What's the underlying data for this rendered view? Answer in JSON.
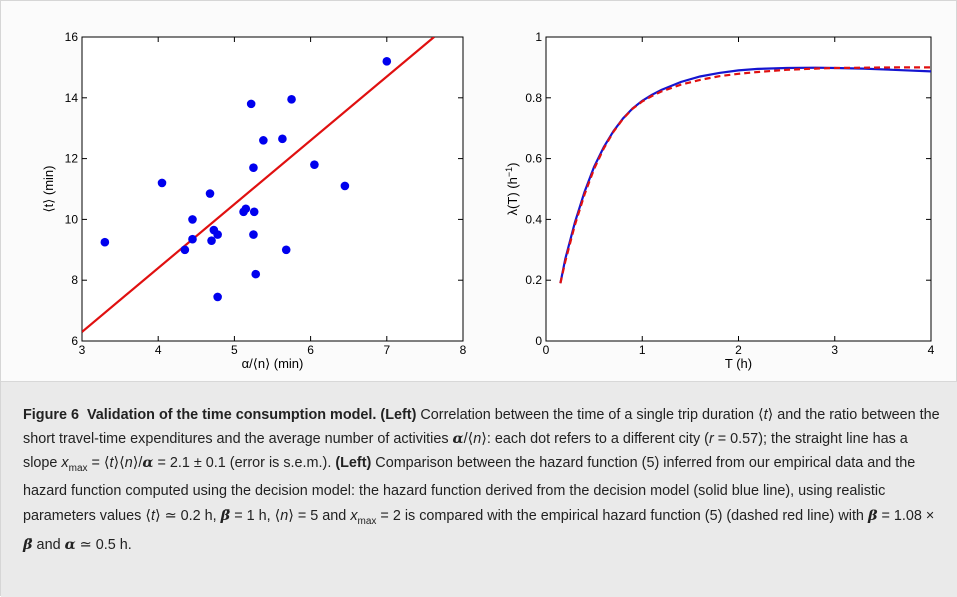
{
  "chart_data": [
    {
      "type": "scatter",
      "xlabel": "α/⟨n⟩ (min)",
      "ylabel": "⟨t⟩ (min)",
      "xlim": [
        3,
        8
      ],
      "ylim": [
        6,
        16
      ],
      "xticks": [
        "3",
        "4",
        "5",
        "6",
        "7",
        "8"
      ],
      "yticks": [
        "6",
        "8",
        "10",
        "12",
        "14",
        "16"
      ],
      "grid": false,
      "points": [
        [
          3.3,
          9.25
        ],
        [
          4.05,
          11.2
        ],
        [
          4.35,
          9.0
        ],
        [
          4.45,
          9.35
        ],
        [
          4.45,
          10.0
        ],
        [
          4.68,
          10.85
        ],
        [
          4.7,
          9.3
        ],
        [
          4.73,
          9.65
        ],
        [
          4.78,
          9.5
        ],
        [
          4.78,
          7.45
        ],
        [
          5.12,
          10.25
        ],
        [
          5.15,
          10.35
        ],
        [
          5.22,
          13.8
        ],
        [
          5.25,
          11.7
        ],
        [
          5.25,
          9.5
        ],
        [
          5.26,
          10.25
        ],
        [
          5.28,
          8.2
        ],
        [
          5.38,
          12.6
        ],
        [
          5.63,
          12.65
        ],
        [
          5.68,
          9.0
        ],
        [
          5.75,
          13.95
        ],
        [
          6.05,
          11.8
        ],
        [
          6.45,
          11.1
        ],
        [
          7.0,
          15.2
        ]
      ],
      "fit_line": {
        "slope": 2.1,
        "x": [
          3,
          7.62
        ],
        "y": [
          6.3,
          16.0
        ]
      },
      "point_color": "#0000ee",
      "line_color": "#e01010"
    },
    {
      "type": "line",
      "xlabel": "T (h)",
      "ylabel": "λ(T) (h",
      "ylabel_sup": "−1",
      "ylabel_close": ")",
      "xlim": [
        0,
        4
      ],
      "ylim": [
        0,
        1
      ],
      "xticks": [
        "0",
        "1",
        "2",
        "3",
        "4"
      ],
      "yticks": [
        "0",
        "0.2",
        "0.4",
        "0.6",
        "0.8",
        "1"
      ],
      "grid": false,
      "series": [
        {
          "style": "solid",
          "color": "#1515d0",
          "x": [
            0.15,
            0.2,
            0.3,
            0.4,
            0.5,
            0.6,
            0.7,
            0.8,
            0.9,
            1.0,
            1.1,
            1.2,
            1.4,
            1.6,
            1.8,
            2.0,
            2.2,
            2.5,
            2.8,
            3.0,
            3.3,
            3.6,
            4.0
          ],
          "y": [
            0.19,
            0.27,
            0.39,
            0.49,
            0.573,
            0.638,
            0.69,
            0.732,
            0.765,
            0.79,
            0.81,
            0.826,
            0.852,
            0.87,
            0.882,
            0.89,
            0.895,
            0.898,
            0.899,
            0.898,
            0.896,
            0.892,
            0.887
          ]
        },
        {
          "style": "dashed",
          "color": "#e01010",
          "x": [
            0.15,
            0.2,
            0.3,
            0.4,
            0.5,
            0.6,
            0.7,
            0.8,
            0.9,
            1.0,
            1.1,
            1.2,
            1.4,
            1.6,
            1.8,
            2.0,
            2.2,
            2.5,
            2.8,
            3.0,
            3.3,
            3.6,
            4.0
          ],
          "y": [
            0.19,
            0.262,
            0.382,
            0.482,
            0.566,
            0.634,
            0.688,
            0.731,
            0.764,
            0.788,
            0.806,
            0.821,
            0.843,
            0.859,
            0.871,
            0.879,
            0.885,
            0.892,
            0.896,
            0.898,
            0.899,
            0.9,
            0.9
          ]
        }
      ]
    }
  ],
  "caption": {
    "figure_label": "Figure 6",
    "figure_title": "Validation of the time consumption model.",
    "left_tag": "(Left)",
    "p1": " Correlation between the time of a single trip duration ⟨",
    "t1": "t",
    "p2": "⟩ and the ratio between the short travel-time expenditures and the average number of activities ",
    "alpha1": "α",
    "p3": "/⟨",
    "n1": "n",
    "p4": "⟩: each dot refers to a different city (",
    "r": "r",
    "p5": " = 0.57); the straight line has a slope ",
    "x1": "x",
    "max1": "max",
    "p6": " = ⟨",
    "t2": "t",
    "p7": "⟩⟨",
    "n2": "n",
    "p8": "⟩/",
    "alpha2": "α",
    "p9": " = 2.1 ± 0.1 (error is s.e.m.). ",
    "left_tag2": "(Left)",
    "p10": " Comparison between the hazard function (5) inferred from our empirical data and the hazard function computed using the decision model: the hazard function derived from the decision model (solid blue line), using realistic parameters values ⟨",
    "t3": "t",
    "p11": "⟩ ≃ 0.2 h, ",
    "beta1": "β̄",
    "p12": " = 1 h, ⟨",
    "n3": "n",
    "p13": "⟩ = 5 and ",
    "x2": "x",
    "max2": "max",
    "p14": " = 2 is compared with the empirical hazard function (5) (dashed red line) with ",
    "beta2": "β",
    "p15": " = 1.08 × ",
    "beta3": "β̄",
    "p16": " and ",
    "alpha3": "α",
    "p17": " ≃ 0.5 h."
  }
}
